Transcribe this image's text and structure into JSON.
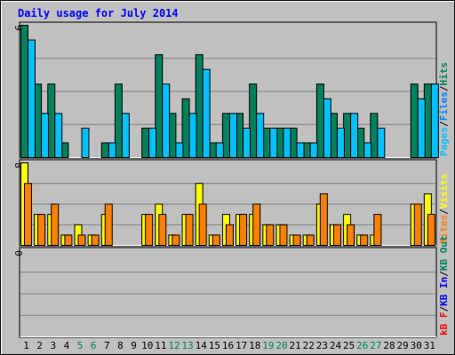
{
  "chart_data": {
    "type": "bar",
    "title": "Daily usage for July 2014",
    "x": [
      "1",
      "2",
      "3",
      "4",
      "5",
      "6",
      "7",
      "8",
      "9",
      "10",
      "11",
      "12",
      "13",
      "14",
      "15",
      "16",
      "17",
      "18",
      "19",
      "20",
      "21",
      "22",
      "23",
      "24",
      "25",
      "26",
      "27",
      "28",
      "29",
      "30",
      "31"
    ],
    "weekend_days": [
      "5",
      "6",
      "12",
      "13",
      "19",
      "20",
      "26",
      "27"
    ],
    "panels": [
      {
        "id": "hits",
        "ymax_label": "9",
        "ylim": [
          0,
          9
        ],
        "series": [
          {
            "name": "Hits",
            "color": "#00805c",
            "values": [
              9,
              5,
              5,
              1,
              0,
              0,
              1,
              5,
              0,
              2,
              7,
              3,
              4,
              7,
              1,
              3,
              3,
              5,
              2,
              2,
              2,
              1,
              5,
              3,
              3,
              2,
              3,
              0,
              0,
              5,
              5
            ]
          },
          {
            "name": "Files",
            "color": "#0080ff",
            "values": [
              0,
              0,
              0,
              0,
              0,
              0,
              0,
              0,
              0,
              0,
              0,
              0,
              0,
              0,
              0,
              0,
              0,
              0,
              0,
              0,
              0,
              0,
              0,
              0,
              0,
              0,
              0,
              0,
              0,
              0,
              0
            ]
          },
          {
            "name": "Pages",
            "color": "#00c0ff",
            "values": [
              8,
              3,
              3,
              0,
              2,
              0,
              1,
              3,
              0,
              2,
              5,
              1,
              3,
              6,
              1,
              3,
              2,
              3,
              2,
              2,
              1,
              1,
              4,
              2,
              3,
              1,
              2,
              0,
              0,
              4,
              5
            ]
          }
        ],
        "legend_labels": [
          "Pages",
          "Files",
          "Hits"
        ],
        "legend_colors": [
          "#00c0ff",
          "#0080ff",
          "#00805c"
        ]
      },
      {
        "id": "visits",
        "ymax_label": "8",
        "ylim": [
          0,
          8
        ],
        "series": [
          {
            "name": "Visits",
            "color": "#ffff00",
            "values": [
              8,
              3,
              3,
              1,
              2,
              1,
              3,
              0,
              0,
              3,
              4,
              1,
              3,
              6,
              1,
              3,
              3,
              3,
              2,
              2,
              1,
              1,
              4,
              2,
              3,
              1,
              1,
              0,
              0,
              4,
              5
            ]
          },
          {
            "name": "Sites",
            "color": "#ff8000",
            "values": [
              6,
              3,
              4,
              1,
              1,
              1,
              4,
              0,
              0,
              3,
              3,
              1,
              3,
              4,
              1,
              2,
              3,
              4,
              2,
              2,
              1,
              1,
              5,
              2,
              2,
              1,
              3,
              0,
              0,
              4,
              3
            ]
          }
        ],
        "legend_labels": [
          "Sites",
          "Visits"
        ],
        "legend_colors": [
          "#ff8000",
          "#ffff00"
        ]
      },
      {
        "id": "kbytes",
        "ymax_label": "0",
        "ylim": [
          0,
          1
        ],
        "series": [
          {
            "name": "KBytes",
            "color": "#ff0000",
            "values": [
              0,
              0,
              0,
              0,
              0,
              0,
              0,
              0,
              0,
              0,
              0,
              0,
              0,
              0,
              0,
              0,
              0,
              0,
              0,
              0,
              0,
              0,
              0,
              0,
              0,
              0,
              0,
              0,
              0,
              0,
              0
            ]
          },
          {
            "name": "KB In",
            "color": "#0000ff",
            "values": [
              0,
              0,
              0,
              0,
              0,
              0,
              0,
              0,
              0,
              0,
              0,
              0,
              0,
              0,
              0,
              0,
              0,
              0,
              0,
              0,
              0,
              0,
              0,
              0,
              0,
              0,
              0,
              0,
              0,
              0,
              0
            ]
          },
          {
            "name": "KB Out",
            "color": "#00805c",
            "values": [
              0,
              0,
              0,
              0,
              0,
              0,
              0,
              0,
              0,
              0,
              0,
              0,
              0,
              0,
              0,
              0,
              0,
              0,
              0,
              0,
              0,
              0,
              0,
              0,
              0,
              0,
              0,
              0,
              0,
              0,
              0
            ]
          }
        ],
        "legend_labels": [
          "KB In",
          "KB Out"
        ],
        "legend_colors": [
          "#0000ff",
          "#00805c"
        ],
        "legend_extra": [
          "kB F"
        ],
        "legend_extra_colors": [
          "#ff0000"
        ]
      }
    ],
    "legend_separator": "/",
    "colors": {
      "background": "#c0c0c0",
      "title": "#0000ff",
      "axis_text": "#000000",
      "weekend_text": "#00805c",
      "gridline": "#808080"
    },
    "grid": true
  }
}
